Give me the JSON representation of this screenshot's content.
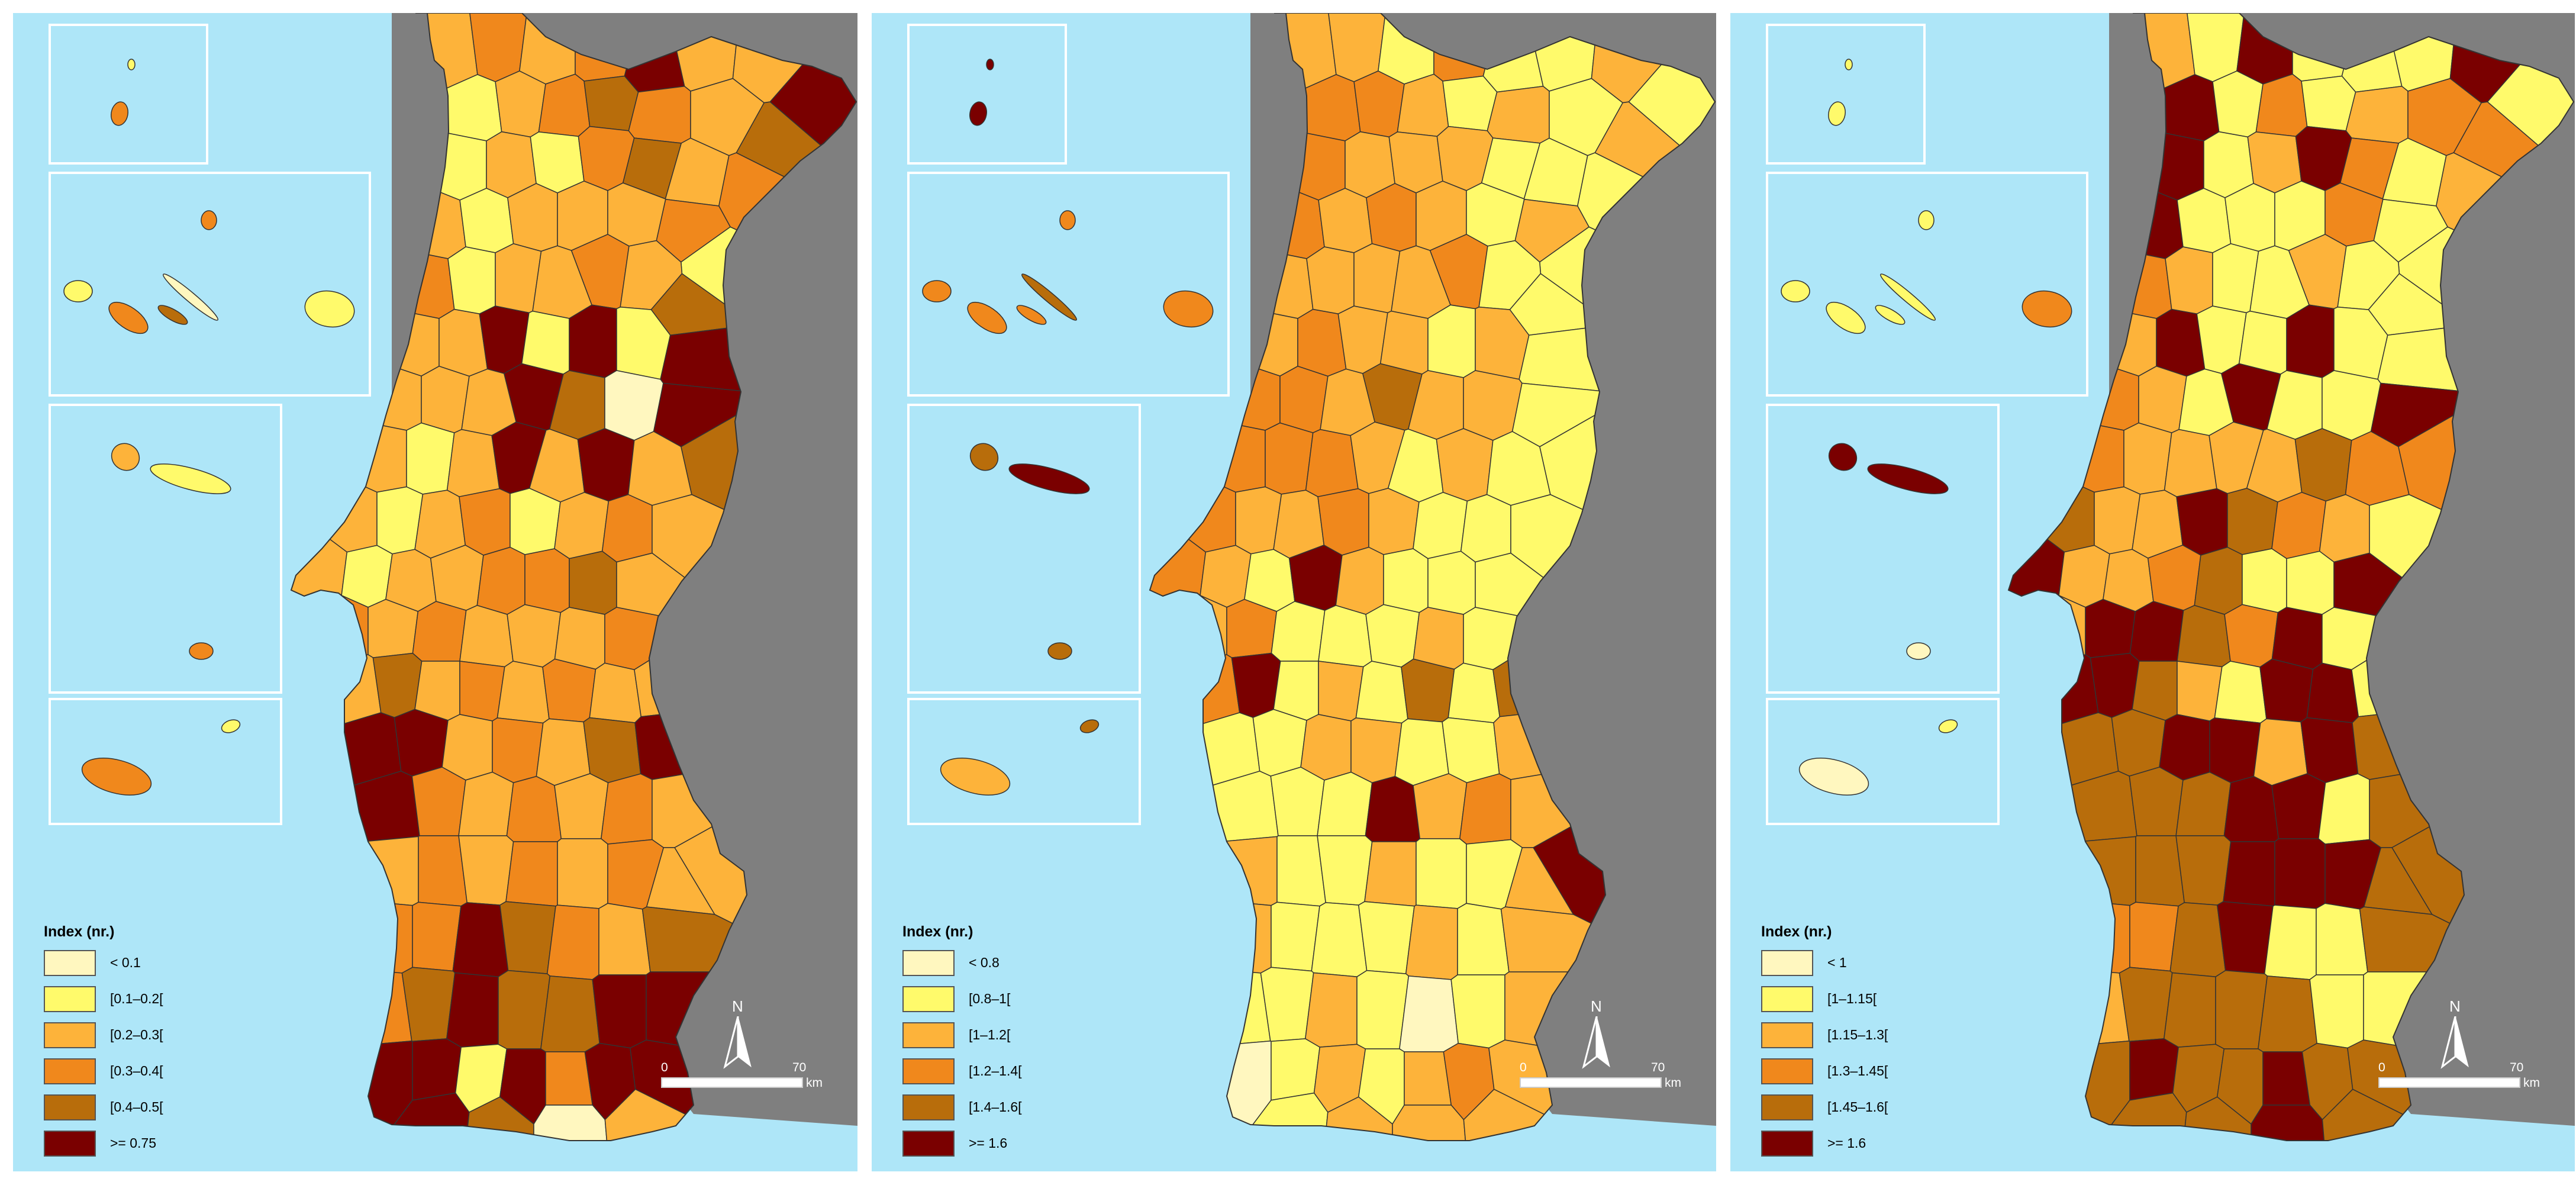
{
  "maps": [
    {
      "legend_title": "Index (nr.)",
      "legend": [
        {
          "label": "< 0.1",
          "color": "#fff7bf"
        },
        {
          "label": "[0.1–0.2[",
          "color": "#fffa6b"
        },
        {
          "label": "[0.2–0.3[",
          "color": "#fdb33a"
        },
        {
          "label": "[0.3–0.4[",
          "color": "#f0881c"
        },
        {
          "label": "[0.4–0.5[",
          "color": "#b86d0b"
        },
        {
          "label": ">= 0.75",
          "color": "#7a0000"
        }
      ],
      "north_label": "N",
      "scale": {
        "start": "0",
        "end": "70",
        "unit": "km"
      }
    },
    {
      "legend_title": "Index (nr.)",
      "legend": [
        {
          "label": "< 0.8",
          "color": "#fff7bf"
        },
        {
          "label": "[0.8–1[",
          "color": "#fffa6b"
        },
        {
          "label": "[1–1.2[",
          "color": "#fdb33a"
        },
        {
          "label": "[1.2–1.4[",
          "color": "#f0881c"
        },
        {
          "label": "[1.4–1.6[",
          "color": "#b86d0b"
        },
        {
          "label": ">= 1.6",
          "color": "#7a0000"
        }
      ],
      "north_label": "N",
      "scale": {
        "start": "0",
        "end": "70",
        "unit": "km"
      }
    },
    {
      "legend_title": "Index (nr.)",
      "legend": [
        {
          "label": "< 1",
          "color": "#fff7bf"
        },
        {
          "label": "[1–1.15[",
          "color": "#fffa6b"
        },
        {
          "label": "[1.15–1.3[",
          "color": "#fdb33a"
        },
        {
          "label": "[1.3–1.45[",
          "color": "#f0881c"
        },
        {
          "label": "[1.45–1.6[",
          "color": "#b86d0b"
        },
        {
          "label": ">= 1.6",
          "color": "#7a0000"
        }
      ],
      "north_label": "N",
      "scale": {
        "start": "0",
        "end": "70",
        "unit": "km"
      }
    }
  ],
  "colors": {
    "sea": "#aee6f8",
    "land_outside": "#7f7f7f",
    "border": "#333333",
    "inset_frame": "#ffffff"
  }
}
